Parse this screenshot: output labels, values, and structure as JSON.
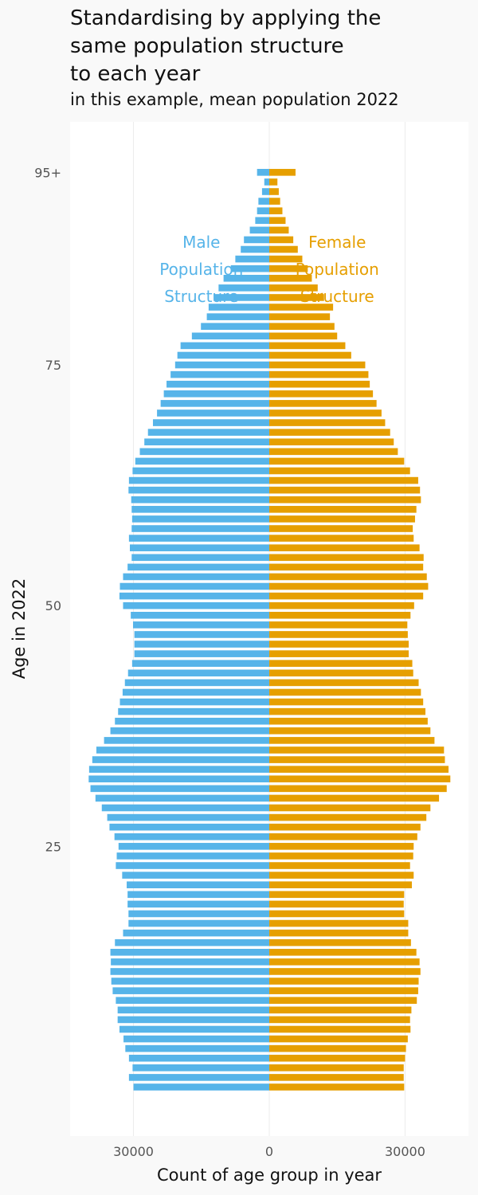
{
  "colors": {
    "male": "#56b4e9",
    "female": "#e69f00",
    "panel_background": "#ffffff",
    "page_background": "#f9f9f9"
  },
  "chart_data": {
    "type": "bar",
    "orientation": "horizontal",
    "title": "Standardising by applying the\nsame population structure\nto each year",
    "subtitle": "in this example, mean population 2022",
    "xlabel": "Count of age group in year",
    "ylabel": "Age in 2022",
    "x_tick_labels": [
      "30000",
      "0",
      "30000"
    ],
    "x_ticks": [
      -30000,
      0,
      30000
    ],
    "y_tick_labels": [
      "25",
      "50",
      "75",
      "95+"
    ],
    "y_ticks": [
      25,
      50,
      75,
      95
    ],
    "xlim": [
      -44000,
      44000
    ],
    "annotations": [
      {
        "series": "male",
        "lines": [
          "Male",
          "Population",
          "Structure"
        ]
      },
      {
        "series": "female",
        "lines": [
          "Female",
          "Population",
          "Structure"
        ]
      }
    ],
    "categories": [
      0,
      1,
      2,
      3,
      4,
      5,
      6,
      7,
      8,
      9,
      10,
      11,
      12,
      13,
      14,
      15,
      16,
      17,
      18,
      19,
      20,
      21,
      22,
      23,
      24,
      25,
      26,
      27,
      28,
      29,
      30,
      31,
      32,
      33,
      34,
      35,
      36,
      37,
      38,
      39,
      40,
      41,
      42,
      43,
      44,
      45,
      46,
      47,
      48,
      49,
      50,
      51,
      52,
      53,
      54,
      55,
      56,
      57,
      58,
      59,
      60,
      61,
      62,
      63,
      64,
      65,
      66,
      67,
      68,
      69,
      70,
      71,
      72,
      73,
      74,
      75,
      76,
      77,
      78,
      79,
      80,
      81,
      82,
      83,
      84,
      85,
      86,
      87,
      88,
      89,
      90,
      91,
      92,
      93,
      94,
      95
    ],
    "series": [
      {
        "key": "male",
        "values": [
          30000,
          31000,
          30200,
          31000,
          31800,
          32200,
          33100,
          33500,
          33500,
          33900,
          34600,
          34900,
          35100,
          35000,
          35100,
          34100,
          32300,
          31100,
          31100,
          31300,
          31300,
          31500,
          32500,
          33900,
          33700,
          33300,
          34200,
          35300,
          35800,
          37000,
          38400,
          39500,
          39900,
          39800,
          39100,
          38200,
          36500,
          35100,
          34100,
          33400,
          33000,
          32400,
          31900,
          31200,
          30300,
          29800,
          29800,
          29800,
          30100,
          30600,
          32300,
          33100,
          33000,
          32300,
          31300,
          30400,
          30800,
          31000,
          30400,
          30300,
          30400,
          30500,
          31100,
          31000,
          30200,
          29600,
          28600,
          27600,
          26800,
          25700,
          24800,
          24000,
          23300,
          22700,
          21800,
          20800,
          20300,
          19600,
          17100,
          15100,
          13800,
          13400,
          12300,
          11200,
          10100,
          8500,
          7500,
          6300,
          5600,
          4300,
          3100,
          2700,
          2400,
          1600,
          1100,
          2700
        ]
      },
      {
        "key": "female",
        "values": [
          29800,
          29700,
          29700,
          30000,
          30200,
          30600,
          31200,
          31100,
          31400,
          32600,
          32900,
          33000,
          33400,
          33200,
          32500,
          31300,
          30700,
          30700,
          29800,
          29700,
          29800,
          31500,
          31900,
          31100,
          31800,
          31900,
          32700,
          33400,
          34700,
          35600,
          37500,
          39200,
          40000,
          39600,
          38800,
          38600,
          36500,
          35600,
          35000,
          34500,
          34000,
          33500,
          33000,
          31800,
          31600,
          30800,
          30800,
          30600,
          30500,
          31200,
          32000,
          34000,
          35100,
          34800,
          34000,
          34100,
          33200,
          31900,
          31700,
          32200,
          32500,
          33500,
          33300,
          32900,
          31100,
          29800,
          28400,
          27500,
          26700,
          25600,
          24800,
          23700,
          22900,
          22200,
          21900,
          21200,
          18100,
          16800,
          15000,
          14400,
          13400,
          14100,
          12100,
          10700,
          9400,
          8500,
          7300,
          6300,
          5300,
          4300,
          3600,
          2900,
          2400,
          2100,
          1800,
          5800
        ]
      }
    ]
  }
}
